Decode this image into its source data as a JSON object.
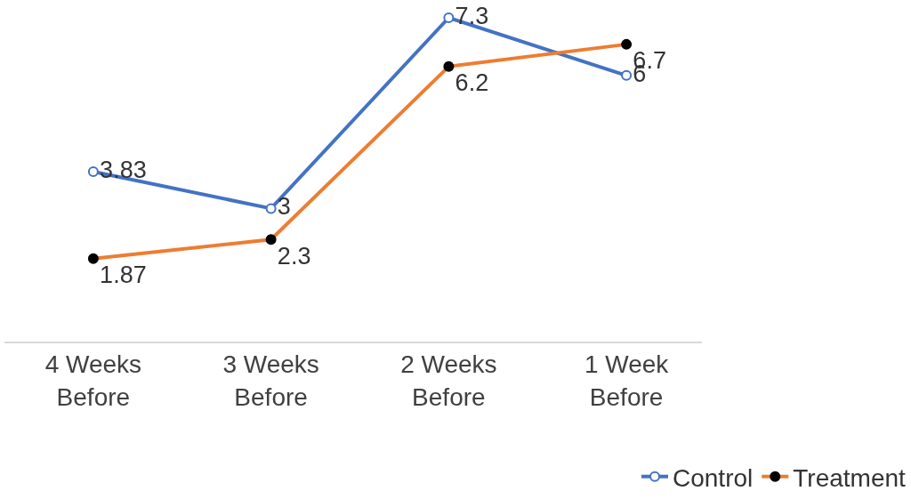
{
  "chart_data": {
    "type": "line",
    "categories": [
      "4 Weeks Before",
      "3 Weeks Before",
      "2 Weeks Before",
      "1 Week Before"
    ],
    "series": [
      {
        "name": "Control",
        "color": "#4472c4",
        "values": [
          3.83,
          3,
          7.3,
          6
        ]
      },
      {
        "name": "Treatment",
        "color": "#ed7d31",
        "values": [
          1.87,
          2.3,
          6.2,
          6.7
        ]
      }
    ],
    "ylim": [
      0,
      7.7
    ],
    "data_labels": true,
    "marker": "circle",
    "legend": "bottom right",
    "tick_labels": "x"
  }
}
